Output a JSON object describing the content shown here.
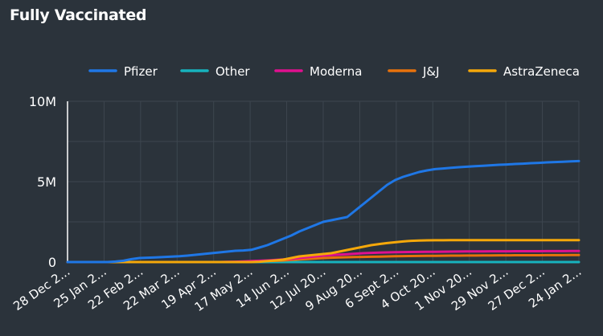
{
  "chart_data": {
    "type": "line",
    "title": "Fully Vaccinated",
    "xlabel": "",
    "ylabel": "",
    "ylim": [
      0,
      10000000
    ],
    "y_ticks": [
      {
        "value": 0,
        "label": "0"
      },
      {
        "value": 5000000,
        "label": "5M"
      },
      {
        "value": 10000000,
        "label": "10M"
      }
    ],
    "x_tick_labels": [
      "28 Dec 2...",
      "25 Jan 2...",
      "22 Feb 2...",
      "22 Mar 2...",
      "19 Apr 2...",
      "17 May 2...",
      "14 Jun 2...",
      "12 Jul 20...",
      "9 Aug 20...",
      "6 Sept 2...",
      "4 Oct 20...",
      "1 Nov 20...",
      "29 Nov 2...",
      "27 Dec 2...",
      "24 Jan 2..."
    ],
    "grid": true,
    "legend_position": "top",
    "series": [
      {
        "name": "Pfizer",
        "color": "#1f77e6",
        "values": [
          0,
          0,
          0,
          0,
          0,
          0,
          30000,
          80000,
          180000,
          250000,
          270000,
          290000,
          310000,
          340000,
          360000,
          400000,
          450000,
          500000,
          550000,
          600000,
          650000,
          700000,
          720000,
          760000,
          900000,
          1050000,
          1250000,
          1450000,
          1650000,
          1900000,
          2100000,
          2300000,
          2500000,
          2600000,
          2700000,
          2800000,
          3200000,
          3600000,
          4000000,
          4400000,
          4800000,
          5100000,
          5300000,
          5450000,
          5600000,
          5700000,
          5780000,
          5820000,
          5860000,
          5900000,
          5930000,
          5960000,
          5990000,
          6020000,
          6050000,
          6070000,
          6100000,
          6120000,
          6150000,
          6170000,
          6200000,
          6220000,
          6240000,
          6260000,
          6280000
        ]
      },
      {
        "name": "Other",
        "color": "#17b3be",
        "values": [
          0,
          0,
          0,
          0,
          0,
          0,
          0,
          0,
          0,
          0,
          0,
          0,
          0,
          0,
          0,
          0,
          0,
          0,
          0,
          0,
          0,
          0,
          0,
          0,
          0,
          0,
          0,
          0,
          0,
          0,
          0,
          0,
          0,
          0,
          0,
          0,
          0,
          0,
          0,
          0,
          0,
          0,
          0,
          0,
          0,
          0,
          0,
          0,
          0,
          0,
          0,
          0,
          0,
          0,
          0,
          0,
          0,
          0,
          0,
          0,
          0,
          0,
          0,
          0,
          0
        ]
      },
      {
        "name": "Moderna",
        "color": "#e0108f",
        "values": [
          0,
          0,
          0,
          0,
          0,
          0,
          0,
          0,
          0,
          0,
          0,
          0,
          0,
          0,
          0,
          0,
          0,
          0,
          0,
          0,
          10000,
          20000,
          40000,
          60000,
          80000,
          100000,
          130000,
          160000,
          200000,
          250000,
          300000,
          350000,
          400000,
          430000,
          460000,
          490000,
          520000,
          550000,
          570000,
          590000,
          600000,
          610000,
          620000,
          625000,
          630000,
          635000,
          640000,
          645000,
          650000,
          655000,
          660000,
          662000,
          664000,
          666000,
          668000,
          670000,
          672000,
          674000,
          676000,
          678000,
          680000,
          682000,
          684000,
          686000,
          688000
        ]
      },
      {
        "name": "J&J",
        "color": "#e8720c",
        "values": [
          0,
          0,
          0,
          0,
          0,
          0,
          0,
          0,
          0,
          0,
          0,
          0,
          0,
          0,
          0,
          0,
          0,
          0,
          0,
          0,
          0,
          0,
          10000,
          20000,
          40000,
          60000,
          80000,
          100000,
          130000,
          160000,
          190000,
          220000,
          250000,
          270000,
          290000,
          300000,
          310000,
          320000,
          330000,
          340000,
          350000,
          360000,
          370000,
          375000,
          380000,
          385000,
          390000,
          395000,
          400000,
          403000,
          406000,
          409000,
          412000,
          415000,
          418000,
          420000,
          422000,
          424000,
          426000,
          428000,
          430000,
          432000,
          434000,
          436000,
          438000
        ]
      },
      {
        "name": "AstraZeneca",
        "color": "#f5a80a",
        "values": [
          0,
          0,
          0,
          0,
          0,
          0,
          0,
          0,
          0,
          0,
          0,
          0,
          0,
          0,
          0,
          0,
          0,
          0,
          0,
          0,
          0,
          0,
          0,
          0,
          20000,
          60000,
          100000,
          150000,
          250000,
          350000,
          400000,
          450000,
          500000,
          550000,
          650000,
          750000,
          850000,
          950000,
          1050000,
          1120000,
          1180000,
          1230000,
          1280000,
          1320000,
          1340000,
          1350000,
          1355000,
          1358000,
          1360000,
          1360000,
          1360000,
          1360000,
          1360000,
          1360000,
          1360000,
          1360000,
          1360000,
          1360000,
          1360000,
          1360000,
          1360000,
          1360000,
          1360000,
          1360000,
          1360000
        ]
      }
    ]
  }
}
